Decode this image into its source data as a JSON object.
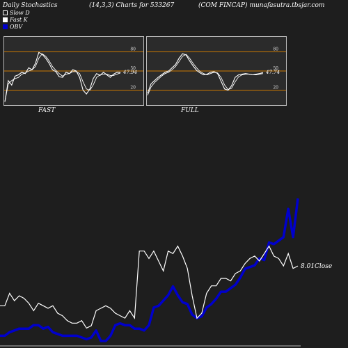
{
  "header": {
    "left": "Daily Stochastics",
    "center": "(14,3,3) Charts for 533267",
    "right": "(COM FINCAP) munafasutra.tbsjar.com"
  },
  "legend": [
    {
      "label": "Slow  D",
      "swatch": "hollow"
    },
    {
      "label": "Fast K",
      "swatch": "white"
    },
    {
      "label": "OBV",
      "swatch": "blue"
    }
  ],
  "colors": {
    "background": "#1e1e1e",
    "panel": "#2b2b2b",
    "level_line": "#cc7a00",
    "obv": "#0000cc",
    "price": "#ffffff"
  },
  "chart_data": [
    {
      "type": "line",
      "name": "FAST",
      "yticks": [
        20,
        50,
        80
      ],
      "ylim": [
        0,
        100
      ],
      "last_value_label": "47.94",
      "series": [
        {
          "name": "Fast K",
          "values": [
            2,
            35,
            28,
            42,
            44,
            48,
            46,
            55,
            52,
            62,
            79,
            76,
            70,
            62,
            52,
            49,
            41,
            40,
            48,
            46,
            52,
            50,
            40,
            20,
            14,
            22,
            38,
            46,
            43,
            48,
            44,
            40,
            45,
            48,
            47.9
          ]
        },
        {
          "name": "Slow D",
          "values": [
            2,
            30,
            35,
            38,
            40,
            45,
            47,
            50,
            52,
            57,
            70,
            77,
            73,
            66,
            57,
            51,
            46,
            42,
            45,
            46,
            49,
            49,
            46,
            33,
            22,
            20,
            28,
            40,
            44,
            45,
            45,
            43,
            43,
            45,
            47
          ]
        }
      ]
    },
    {
      "type": "line",
      "name": "FULL",
      "yticks": [
        20,
        50,
        80
      ],
      "ylim": [
        0,
        100
      ],
      "last_value_label": "47.74",
      "series": [
        {
          "name": "Full K",
          "values": [
            15,
            30,
            35,
            40,
            44,
            48,
            50,
            55,
            60,
            70,
            77,
            75,
            66,
            58,
            51,
            47,
            44,
            45,
            48,
            49,
            46,
            34,
            22,
            20,
            27,
            40,
            44,
            45,
            46,
            45,
            44,
            45,
            46,
            47.7
          ]
        },
        {
          "name": "Full D",
          "values": [
            12,
            25,
            32,
            37,
            42,
            46,
            48,
            52,
            57,
            65,
            73,
            76,
            70,
            62,
            55,
            49,
            46,
            44,
            46,
            48,
            47,
            40,
            28,
            21,
            23,
            33,
            41,
            44,
            45,
            45,
            44,
            44,
            45,
            46
          ]
        }
      ]
    },
    {
      "type": "line",
      "name": "OBV / Close",
      "last_close_label": "8.01",
      "last_close_suffix": "Close",
      "series": [
        {
          "name": "Close",
          "values": [
            6.5,
            6.5,
            7.0,
            6.7,
            6.9,
            6.8,
            6.6,
            6.3,
            6.6,
            6.5,
            6.4,
            6.5,
            6.2,
            6.1,
            5.9,
            5.8,
            5.8,
            5.9,
            5.6,
            5.7,
            6.3,
            6.4,
            6.5,
            6.4,
            6.2,
            6.1,
            6.0,
            6.3,
            6.0,
            8.7,
            8.7,
            8.4,
            8.7,
            8.3,
            7.9,
            8.7,
            8.6,
            8.9,
            8.5,
            8.0,
            6.9,
            6.0,
            6.2,
            7.0,
            7.3,
            7.3,
            7.6,
            7.6,
            7.5,
            7.8,
            7.9,
            8.2,
            8.4,
            8.5,
            8.3,
            8.6,
            8.9,
            8.5,
            8.4,
            8.1,
            8.6,
            8.0,
            8.1
          ]
        },
        {
          "name": "OBV",
          "values": [
            1.0,
            1.0,
            1.2,
            1.3,
            1.4,
            1.4,
            1.4,
            1.6,
            1.6,
            1.4,
            1.5,
            1.2,
            1.1,
            1.0,
            1.0,
            1.0,
            1.0,
            0.9,
            0.8,
            0.9,
            1.3,
            0.7,
            0.7,
            1.0,
            1.6,
            1.7,
            1.6,
            1.6,
            1.4,
            1.4,
            1.3,
            1.6,
            2.6,
            2.7,
            3.0,
            3.3,
            3.8,
            3.3,
            2.9,
            2.8,
            2.2,
            2.0,
            2.1,
            2.6,
            2.8,
            3.1,
            3.5,
            3.5,
            3.7,
            3.9,
            4.3,
            4.8,
            4.9,
            5.0,
            5.4,
            5.3,
            6.3,
            6.2,
            6.4,
            6.6,
            8.2,
            6.6,
            8.8
          ]
        }
      ]
    }
  ]
}
